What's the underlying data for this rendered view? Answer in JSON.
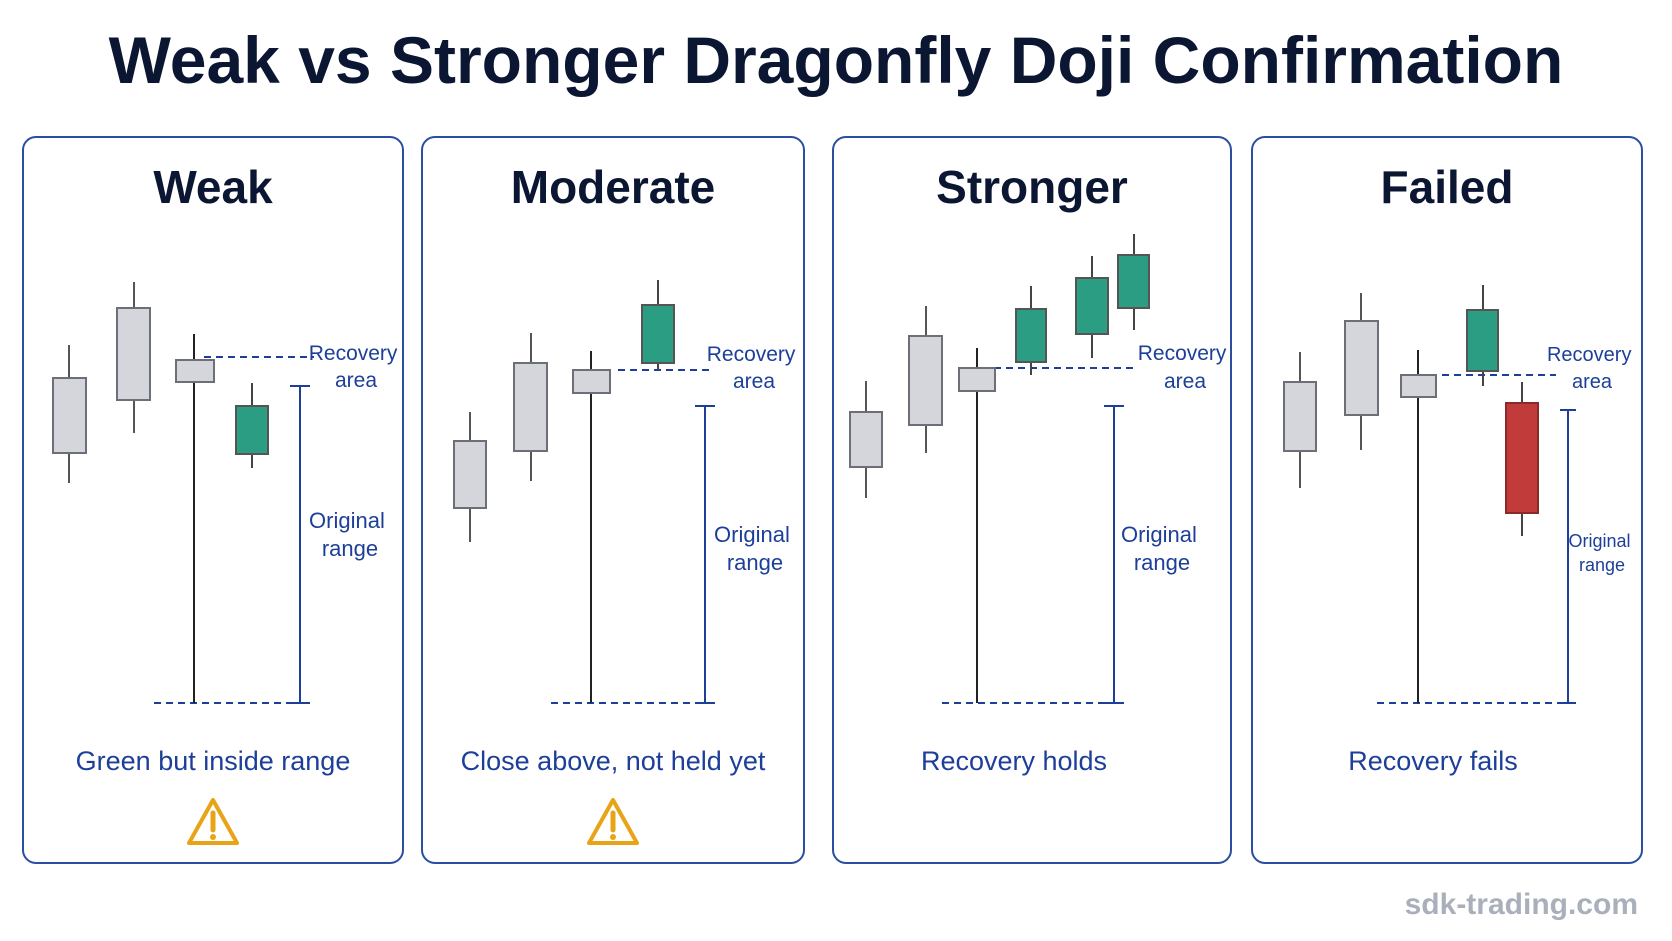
{
  "title": "Weak vs Stronger Dragonfly Doji Confirmation",
  "panels": [
    {
      "title": "Weak",
      "caption": "Green but inside range",
      "warning": true,
      "recovery_label": [
        "Recovery",
        "area"
      ],
      "range_label": [
        "Original",
        "range"
      ]
    },
    {
      "title": "Moderate",
      "caption": "Close above, not held yet",
      "warning": true,
      "recovery_label": [
        "Recovery",
        "area"
      ],
      "range_label": [
        "Original",
        "range"
      ]
    },
    {
      "title": "Stronger",
      "caption": "Recovery holds",
      "warning": false,
      "recovery_label": [
        "Recovery",
        "area"
      ],
      "range_label": [
        "Original",
        "range"
      ]
    },
    {
      "title": "Failed",
      "caption": "Recovery fails",
      "warning": false,
      "recovery_label": [
        "Recovery",
        "area"
      ],
      "range_label": [
        "Original",
        "range"
      ]
    }
  ],
  "colors": {
    "neutral_candle": "#d5d6dc",
    "bull_candle": "#2a9d82",
    "bear_candle": "#c23b3b",
    "annotation": "#1d3f9a",
    "warning": "#e8a317"
  },
  "watermark": "sdk-trading.com"
}
